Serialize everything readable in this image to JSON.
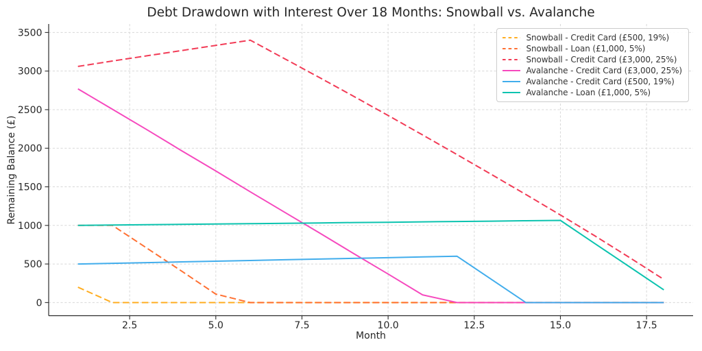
{
  "chart_data": {
    "type": "line",
    "title": "Debt Drawdown with Interest Over 18 Months: Snowball vs. Avalanche",
    "xlabel": "Month",
    "ylabel": "Remaining Balance (£)",
    "grid": true,
    "legend_position": "upper right",
    "xlim": [
      0.15,
      18.85
    ],
    "ylim": [
      -170,
      3610
    ],
    "xticks": [
      2.5,
      5.0,
      7.5,
      10.0,
      12.5,
      15.0,
      17.5
    ],
    "xtick_labels": [
      "2.5",
      "5.0",
      "7.5",
      "10.0",
      "12.5",
      "15.0",
      "17.5"
    ],
    "yticks": [
      0,
      500,
      1000,
      1500,
      2000,
      2500,
      3000,
      3500
    ],
    "ytick_labels": [
      "0",
      "500",
      "1000",
      "1500",
      "2000",
      "2500",
      "3000",
      "3500"
    ],
    "x": [
      1,
      2,
      3,
      4,
      5,
      6,
      7,
      8,
      9,
      10,
      11,
      12,
      13,
      14,
      15,
      16,
      17,
      18
    ],
    "series": [
      {
        "name": "Snowball - Credit Card (£500, 19%)",
        "color": "#FFAE22",
        "style": "dashed",
        "values": [
          200,
          0,
          0,
          0,
          0,
          0,
          0,
          0,
          0,
          0,
          0,
          0,
          0,
          0,
          0,
          0,
          0,
          0
        ]
      },
      {
        "name": "Snowball - Loan (£1,000, 5%)",
        "color": "#FF7032",
        "style": "dashed",
        "values": [
          1000,
          1000,
          705,
          410,
          110,
          0,
          0,
          0,
          0,
          0,
          0,
          0,
          0,
          0,
          0,
          0,
          0,
          0
        ]
      },
      {
        "name": "Snowball - Credit Card (£3,000, 25%)",
        "color": "#F23B56",
        "style": "dashed",
        "values": [
          3060,
          3130,
          3198,
          3265,
          3333,
          3400,
          3160,
          2918,
          2673,
          2425,
          2173,
          1918,
          1660,
          1400,
          1135,
          865,
          585,
          300
        ]
      },
      {
        "name": "Avalanche - Credit Card (£3,000, 25%)",
        "color": "#F649BE",
        "style": "solid",
        "values": [
          2770,
          2505,
          2240,
          1970,
          1705,
          1435,
          1170,
          905,
          635,
          370,
          100,
          0,
          0,
          0,
          0,
          0,
          0,
          0
        ]
      },
      {
        "name": "Avalanche - Credit Card (£500, 19%)",
        "color": "#41ADEC",
        "style": "solid",
        "values": [
          500,
          509,
          518,
          527,
          536,
          545,
          555,
          564,
          573,
          582,
          591,
          600,
          300,
          0,
          0,
          0,
          0,
          0
        ]
      },
      {
        "name": "Avalanche - Loan (£1,000, 5%)",
        "color": "#0BC3AF",
        "style": "solid",
        "values": [
          1000,
          1005,
          1009,
          1014,
          1018,
          1023,
          1027,
          1032,
          1037,
          1041,
          1046,
          1051,
          1055,
          1060,
          1065,
          765,
          465,
          165
        ]
      }
    ]
  }
}
